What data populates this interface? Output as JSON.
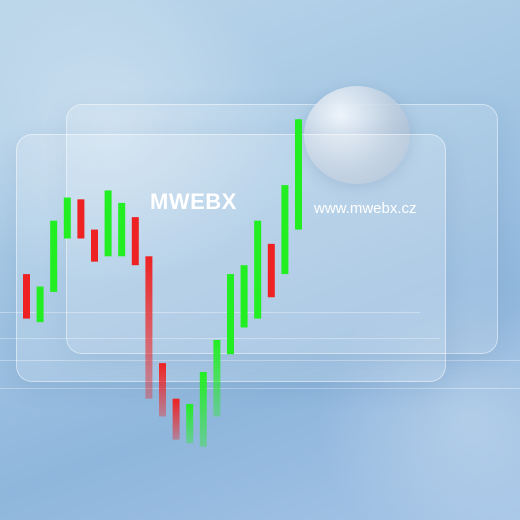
{
  "brand": {
    "name": "MWEBX",
    "url": "www.mwebx.cz"
  },
  "colors": {
    "up": "#22ee22",
    "down": "#ee2222"
  },
  "candles": [
    {
      "dir": "down",
      "open": 55,
      "close": 30
    },
    {
      "dir": "up",
      "open": 28,
      "close": 48
    },
    {
      "dir": "up",
      "open": 45,
      "close": 85
    },
    {
      "dir": "up",
      "open": 75,
      "close": 98
    },
    {
      "dir": "down",
      "open": 97,
      "close": 75
    },
    {
      "dir": "down",
      "open": 80,
      "close": 62
    },
    {
      "dir": "up",
      "open": 65,
      "close": 102
    },
    {
      "dir": "up",
      "open": 65,
      "close": 95
    },
    {
      "dir": "down",
      "open": 87,
      "close": 60
    },
    {
      "dir": "down",
      "open": 65,
      "close": -15
    },
    {
      "dir": "down",
      "open": 5,
      "close": -25
    },
    {
      "dir": "down",
      "open": -15,
      "close": -38
    },
    {
      "dir": "up",
      "open": -40,
      "close": -18
    },
    {
      "dir": "up",
      "open": -42,
      "close": 0
    },
    {
      "dir": "up",
      "open": -25,
      "close": 18
    },
    {
      "dir": "up",
      "open": 10,
      "close": 55
    },
    {
      "dir": "up",
      "open": 25,
      "close": 60
    },
    {
      "dir": "up",
      "open": 30,
      "close": 85
    },
    {
      "dir": "down",
      "open": 72,
      "close": 42
    },
    {
      "dir": "up",
      "open": 55,
      "close": 105
    },
    {
      "dir": "up",
      "open": 80,
      "close": 142
    }
  ]
}
